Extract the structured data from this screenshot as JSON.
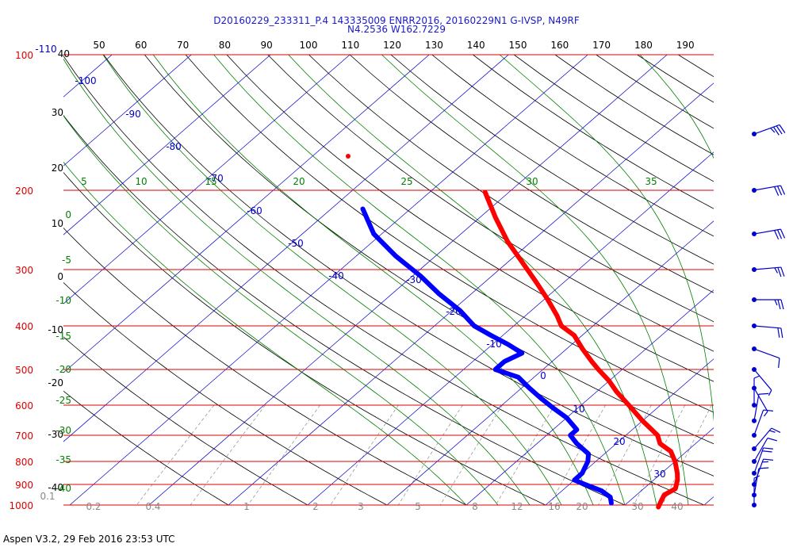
{
  "header": {
    "line1": "D20160229_233311_P.4 143335009 ENRR2016, 20160229N1 G-IVSP, N49RF",
    "line2": "N4.2536 W162.7229"
  },
  "footer": {
    "text": "Aspen V3.2, 29 Feb 2016  23:53 UTC"
  },
  "chart_data": {
    "type": "skew-t log-p",
    "pressure_labels": [
      "100",
      "200",
      "300",
      "400",
      "500",
      "600",
      "700",
      "800",
      "900",
      "1000"
    ],
    "temp_c_labels": [
      "40",
      "30",
      "20",
      "10",
      "0",
      "-10",
      "-20",
      "-30",
      "-40"
    ],
    "temp_f_labels": [
      "50",
      "60",
      "70",
      "80",
      "90",
      "100",
      "110",
      "120",
      "130",
      "140",
      "150",
      "160",
      "170",
      "180",
      "190"
    ],
    "isotherm_labels": [
      "-110",
      "-100",
      "-90",
      "-80",
      "-70",
      "-60",
      "-50",
      "-40",
      "-30",
      "-20",
      "-10",
      "0",
      "10",
      "20",
      "30"
    ],
    "theta_e_labels": [
      "5",
      "10",
      "15",
      "20",
      "25",
      "30",
      "35"
    ],
    "dry_adiabat_labels": [
      "0",
      "-5",
      "-10",
      "-15",
      "-20",
      "-25",
      "-30",
      "-35",
      "-40"
    ],
    "mixing_ratio_labels": [
      "0.1",
      "0.2",
      "0.4",
      "1",
      "2",
      "3",
      "5",
      "8",
      "12",
      "16",
      "20",
      "30",
      "40"
    ],
    "series": [
      {
        "color": "#ff0000",
        "points": [
          [
            202,
            -43
          ],
          [
            230,
            -38
          ],
          [
            260,
            -33
          ],
          [
            290,
            -28
          ],
          [
            320,
            -23.5
          ],
          [
            350,
            -19.5
          ],
          [
            380,
            -16
          ],
          [
            400,
            -14
          ],
          [
            420,
            -11
          ],
          [
            450,
            -8
          ],
          [
            480,
            -5
          ],
          [
            500,
            -3
          ],
          [
            530,
            0
          ],
          [
            560,
            2.5
          ],
          [
            600,
            6
          ],
          [
            650,
            10
          ],
          [
            700,
            14
          ],
          [
            730,
            15.5
          ],
          [
            760,
            18
          ],
          [
            800,
            20
          ],
          [
            850,
            22
          ],
          [
            880,
            23
          ],
          [
            920,
            24
          ],
          [
            950,
            23.5
          ],
          [
            980,
            24
          ],
          [
            1010,
            24.5
          ]
        ]
      },
      {
        "color": "#0000ff",
        "points": [
          [
            220,
            -56
          ],
          [
            250,
            -51
          ],
          [
            280,
            -45
          ],
          [
            310,
            -39
          ],
          [
            340,
            -34
          ],
          [
            370,
            -29
          ],
          [
            400,
            -25
          ],
          [
            420,
            -21.5
          ],
          [
            440,
            -18
          ],
          [
            460,
            -15
          ],
          [
            480,
            -16
          ],
          [
            500,
            -16
          ],
          [
            520,
            -12
          ],
          [
            550,
            -9
          ],
          [
            580,
            -6
          ],
          [
            610,
            -3
          ],
          [
            640,
            0
          ],
          [
            680,
            3
          ],
          [
            700,
            3
          ],
          [
            730,
            5
          ],
          [
            770,
            8
          ],
          [
            800,
            9
          ],
          [
            850,
            10
          ],
          [
            880,
            10
          ],
          [
            900,
            12
          ],
          [
            930,
            15
          ],
          [
            960,
            17
          ],
          [
            990,
            18
          ]
        ]
      }
    ],
    "wind_barbs": [
      {
        "p": 150,
        "dir": 250,
        "spd": 35
      },
      {
        "p": 200,
        "dir": 260,
        "spd": 30
      },
      {
        "p": 250,
        "dir": 260,
        "spd": 30
      },
      {
        "p": 300,
        "dir": 265,
        "spd": 25
      },
      {
        "p": 350,
        "dir": 270,
        "spd": 25
      },
      {
        "p": 400,
        "dir": 275,
        "spd": 20
      },
      {
        "p": 450,
        "dir": 290,
        "spd": 10
      },
      {
        "p": 500,
        "dir": 320,
        "spd": 5
      },
      {
        "p": 550,
        "dir": 330,
        "spd": 5
      },
      {
        "p": 600,
        "dir": 180,
        "spd": 5
      },
      {
        "p": 650,
        "dir": 190,
        "spd": 10
      },
      {
        "p": 700,
        "dir": 200,
        "spd": 10
      },
      {
        "p": 750,
        "dir": 220,
        "spd": 15
      },
      {
        "p": 800,
        "dir": 210,
        "spd": 10
      },
      {
        "p": 850,
        "dir": 200,
        "spd": 20
      },
      {
        "p": 900,
        "dir": 200,
        "spd": 15
      },
      {
        "p": 950,
        "dir": 190,
        "spd": 10
      },
      {
        "p": 1000,
        "dir": 180,
        "spd": 5
      }
    ],
    "colors": {
      "pressure": "#dd0000",
      "celsius": "#000000",
      "fahrenheit": "#000000",
      "isotherm": "#0000cc",
      "theta_e": "#008000",
      "mixing": "#888888"
    }
  }
}
